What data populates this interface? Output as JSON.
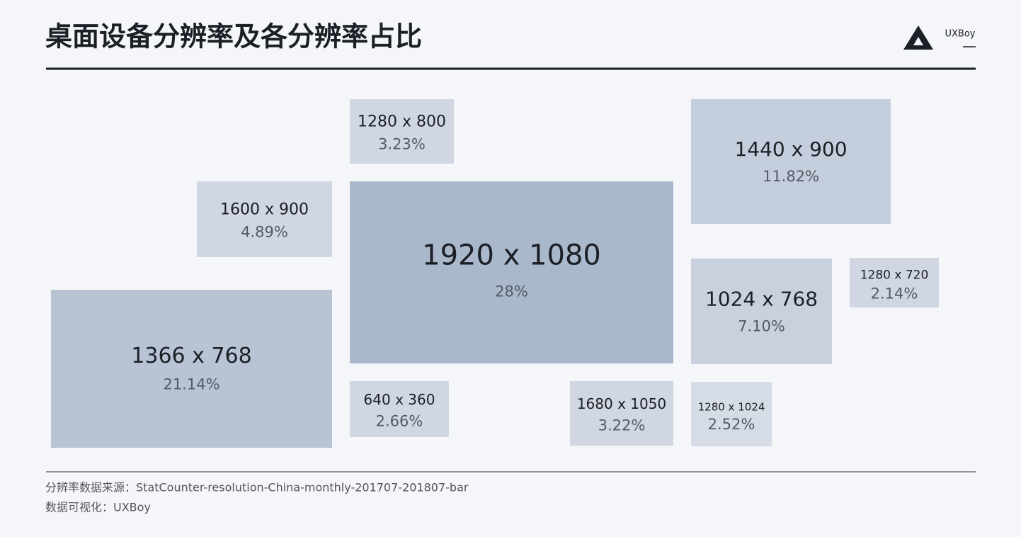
{
  "chart_data": {
    "type": "tile",
    "title": "桌面设备分辨率及各分辨率占比",
    "brand": "UXBoy",
    "source": "分辨率数据来源：StatCounter-resolution-China-monthly-201707-201807-bar",
    "credit": "数据可视化：UXBoy",
    "categories": [
      "1280 x 800",
      "1440 x 900",
      "1600 x 900",
      "1920 x 1080",
      "1024 x 768",
      "1280 x 720",
      "1366 x 768",
      "640 x 360",
      "1680 x 1050",
      "1280 x 1024"
    ],
    "values": [
      3.23,
      11.82,
      4.89,
      28,
      7.1,
      2.14,
      21.14,
      2.66,
      3.22,
      2.52
    ],
    "value_labels": [
      "3.23%",
      "11.82%",
      "4.89%",
      "28%",
      "7.10%",
      "2.14%",
      "21.14%",
      "2.66%",
      "3.22%",
      "2.52%"
    ],
    "colors": [
      "#d0d7e2",
      "#c5cedc",
      "#d0d7e2",
      "#aab8cb",
      "#c9d1de",
      "#d0d7e2",
      "#b8c3d4",
      "#d0d7e2",
      "#d0d7e2",
      "#d6dce6"
    ]
  }
}
